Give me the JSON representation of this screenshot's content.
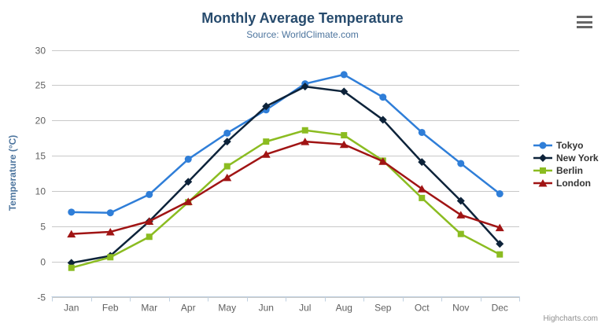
{
  "chart_data": {
    "type": "line",
    "title": "Monthly Average Temperature",
    "subtitle": "Source: WorldClimate.com",
    "categories": [
      "Jan",
      "Feb",
      "Mar",
      "Apr",
      "May",
      "Jun",
      "Jul",
      "Aug",
      "Sep",
      "Oct",
      "Nov",
      "Dec"
    ],
    "xlabel": "",
    "ylabel": "Temperature (°C)",
    "ylim": [
      -5,
      30
    ],
    "yticks": [
      -5,
      0,
      5,
      10,
      15,
      20,
      25,
      30
    ],
    "grid": true,
    "legend_position": "right",
    "series": [
      {
        "name": "Tokyo",
        "color": "#2f7ed8",
        "marker": "circle",
        "values": [
          7.0,
          6.9,
          9.5,
          14.5,
          18.2,
          21.5,
          25.2,
          26.5,
          23.3,
          18.3,
          13.9,
          9.6
        ]
      },
      {
        "name": "New York",
        "color": "#0d233a",
        "marker": "diamond",
        "values": [
          -0.2,
          0.8,
          5.7,
          11.3,
          17.0,
          22.0,
          24.8,
          24.1,
          20.1,
          14.1,
          8.6,
          2.5
        ]
      },
      {
        "name": "Berlin",
        "color": "#8bbc21",
        "marker": "square",
        "values": [
          -0.9,
          0.6,
          3.5,
          8.4,
          13.5,
          17.0,
          18.6,
          17.9,
          14.3,
          9.0,
          3.9,
          1.0
        ]
      },
      {
        "name": "London",
        "color": "#a01414",
        "marker": "triangle",
        "values": [
          3.9,
          4.2,
          5.7,
          8.5,
          11.9,
          15.2,
          17.0,
          16.6,
          14.2,
          10.3,
          6.6,
          4.8
        ]
      }
    ]
  },
  "credits_label": "Highcharts.com",
  "styles": {
    "title_color": "#274b6d",
    "subtitle_color": "#4d759e",
    "axis_title_color": "#4d759e",
    "axis_label_color": "#606060",
    "gridline_color": "#c8c8c8",
    "xaxis_line_color": "#c0d0e0",
    "legend_text_color": "#333333",
    "credits_color": "#909090",
    "menu_icon_color": "#666666",
    "background_color": "#ffffff"
  }
}
